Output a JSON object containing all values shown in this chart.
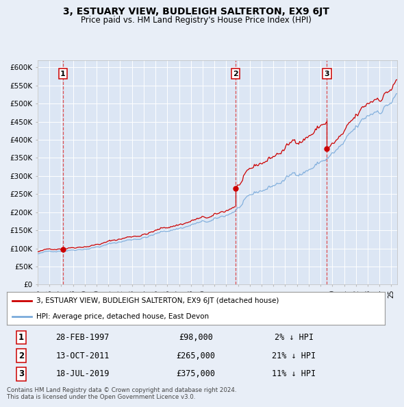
{
  "title": "3, ESTUARY VIEW, BUDLEIGH SALTERTON, EX9 6JT",
  "subtitle": "Price paid vs. HM Land Registry's House Price Index (HPI)",
  "bg_color": "#e8eef7",
  "plot_bg_color": "#dce6f4",
  "grid_color": "#ffffff",
  "red_line_color": "#cc0000",
  "blue_line_color": "#7aabdb",
  "sale_marker_color": "#cc0000",
  "vline_color": "#dd3333",
  "xlim_left": 1995.0,
  "xlim_right": 2025.5,
  "ylim_bottom": 0,
  "ylim_top": 620000,
  "yticks": [
    0,
    50000,
    100000,
    150000,
    200000,
    250000,
    300000,
    350000,
    400000,
    450000,
    500000,
    550000,
    600000
  ],
  "ytick_labels": [
    "£0",
    "£50K",
    "£100K",
    "£150K",
    "£200K",
    "£250K",
    "£300K",
    "£350K",
    "£400K",
    "£450K",
    "£500K",
    "£550K",
    "£600K"
  ],
  "xticks": [
    1995,
    1996,
    1997,
    1998,
    1999,
    2000,
    2001,
    2002,
    2003,
    2004,
    2005,
    2006,
    2007,
    2008,
    2009,
    2010,
    2011,
    2012,
    2013,
    2014,
    2015,
    2016,
    2017,
    2018,
    2019,
    2020,
    2021,
    2022,
    2023,
    2024,
    2025
  ],
  "xtick_labels": [
    "95",
    "96",
    "97",
    "98",
    "99",
    "00",
    "01",
    "02",
    "03",
    "04",
    "05",
    "06",
    "07",
    "08",
    "09",
    "10",
    "11",
    "12",
    "13",
    "14",
    "15",
    "16",
    "17",
    "18",
    "19",
    "20",
    "21",
    "22",
    "23",
    "24",
    "25"
  ],
  "sales": [
    {
      "label": "1",
      "date_num": 1997.15,
      "price": 98000,
      "hpi_pct": "2% ↓ HPI",
      "date_str": "28-FEB-1997",
      "price_str": "£98,000"
    },
    {
      "label": "2",
      "date_num": 2011.78,
      "price": 265000,
      "hpi_pct": "21% ↓ HPI",
      "date_str": "13-OCT-2011",
      "price_str": "£265,000"
    },
    {
      "label": "3",
      "date_num": 2019.54,
      "price": 375000,
      "hpi_pct": "11% ↓ HPI",
      "date_str": "18-JUL-2019",
      "price_str": "£375,000"
    }
  ],
  "legend_entries": [
    "3, ESTUARY VIEW, BUDLEIGH SALTERTON, EX9 6JT (detached house)",
    "HPI: Average price, detached house, East Devon"
  ],
  "footnote": "Contains HM Land Registry data © Crown copyright and database right 2024.\nThis data is licensed under the Open Government Licence v3.0."
}
